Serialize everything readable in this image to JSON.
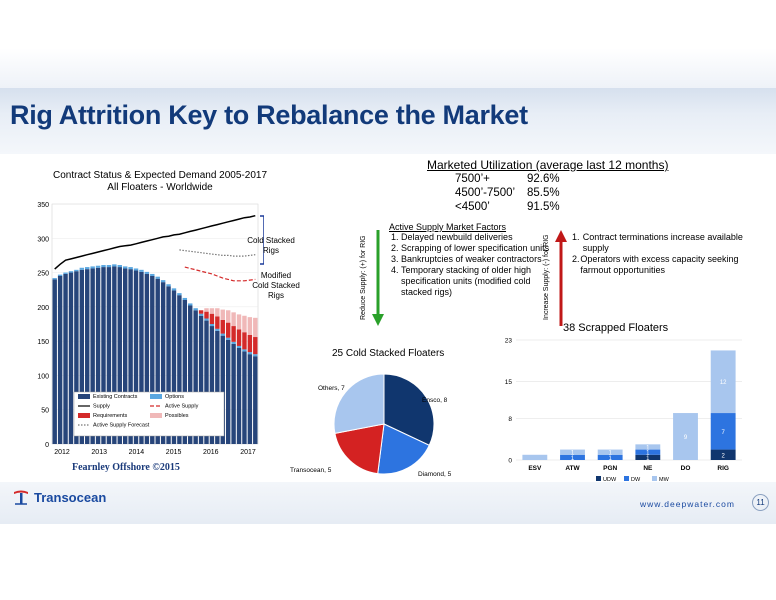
{
  "page": {
    "title": "Rig Attrition Key to Rebalance the Market",
    "website": "www.deepwater.com",
    "page_number": "11",
    "company": "Transocean"
  },
  "left_chart": {
    "title_line1": "Contract Status & Expected Demand 2005-2017",
    "title_line2": "All Floaters - Worldwide",
    "annotation_cold": "Cold Stacked Rigs",
    "annotation_modified_1": "Modified",
    "annotation_modified_2": "Cold Stacked",
    "annotation_modified_3": "Rigs",
    "watermark": "Fearnley Offshore ©2015",
    "legend": [
      "Existing Contracts",
      "Options",
      "Supply",
      "Active Supply",
      "Requirements",
      "Possibles",
      "Active Supply Forecast"
    ]
  },
  "utilization": {
    "title": "Marketed Utilization (average last 12 months)",
    "rows": [
      {
        "cat": "7500’+",
        "val": "92.6%"
      },
      {
        "cat": "4500’-7500’",
        "val": "85.5%"
      },
      {
        "cat": "<4500’",
        "val": "91.5%"
      }
    ]
  },
  "factors": {
    "title": "Active Supply Market Factors",
    "reduce_label": "Reduce Supply: (+) for RIG",
    "increase_label": "Increase Supply: (-) for RIG",
    "reduce_items": [
      "Delayed newbuild deliveries",
      "Scrapping of lower specification units",
      "Bankruptcies of weaker contractors",
      "Temporary stacking of older high specification units (modified cold stacked rigs)"
    ],
    "increase_items": [
      "Contract terminations increase available supply",
      "Operators with excess capacity seeking farmout opportunities"
    ]
  },
  "chart_data": [
    {
      "type": "bar",
      "title": "Contract Status & Expected Demand 2005-2017",
      "subtitle": "All Floaters - Worldwide",
      "ylim": [
        0,
        350
      ],
      "yticks": [
        0,
        50,
        100,
        150,
        200,
        250,
        300,
        350
      ],
      "xticks": [
        "2012",
        "2013",
        "2014",
        "2015",
        "2016",
        "2017"
      ],
      "series": [
        {
          "name": "Existing Contracts",
          "color": "#27457a",
          "values": [
            240,
            245,
            248,
            250,
            252,
            254,
            255,
            256,
            257,
            258,
            258,
            259,
            258,
            256,
            255,
            253,
            251,
            248,
            245,
            241,
            236,
            230,
            224,
            217,
            210,
            202,
            195,
            187,
            180,
            172,
            165,
            158,
            152,
            146,
            140,
            135,
            131,
            128
          ]
        },
        {
          "name": "Options",
          "color": "#5aa7e0",
          "values": [
            2,
            2,
            2,
            2,
            2,
            3,
            3,
            3,
            3,
            3,
            3,
            3,
            3,
            3,
            3,
            3,
            3,
            3,
            3,
            3,
            3,
            3,
            3,
            3,
            3,
            3,
            3,
            3,
            3,
            3,
            3,
            3,
            3,
            3,
            3,
            3,
            3,
            3
          ]
        },
        {
          "name": "Requirements",
          "color": "#d42a2a",
          "values": [
            0,
            0,
            0,
            0,
            0,
            0,
            0,
            0,
            0,
            0,
            0,
            0,
            0,
            0,
            0,
            0,
            0,
            0,
            0,
            0,
            0,
            0,
            0,
            0,
            0,
            0,
            0,
            5,
            10,
            15,
            18,
            20,
            22,
            23,
            24,
            25,
            25,
            25
          ]
        },
        {
          "name": "Possibles",
          "color": "#f0b8b8",
          "values": [
            0,
            0,
            0,
            0,
            0,
            0,
            0,
            0,
            0,
            0,
            0,
            0,
            0,
            0,
            0,
            0,
            0,
            0,
            0,
            0,
            0,
            0,
            0,
            0,
            0,
            0,
            0,
            0,
            5,
            8,
            12,
            15,
            18,
            20,
            22,
            24,
            26,
            28
          ]
        }
      ],
      "lines": [
        {
          "name": "Supply",
          "color": "#000000",
          "values": [
            255,
            262,
            268,
            270,
            272,
            274,
            276,
            278,
            280,
            282,
            284,
            286,
            288,
            289,
            290,
            292,
            294,
            296,
            298,
            300,
            302,
            303,
            305,
            306,
            308,
            310,
            312,
            314,
            316,
            318,
            320,
            322,
            324,
            326,
            328,
            330,
            331,
            333
          ]
        },
        {
          "name": "Active Supply",
          "color": "#d42a2a",
          "values": [
            null,
            null,
            null,
            null,
            null,
            null,
            null,
            null,
            null,
            null,
            null,
            null,
            null,
            null,
            null,
            null,
            null,
            null,
            null,
            null,
            null,
            null,
            null,
            null,
            258,
            256,
            254,
            252,
            250,
            248,
            245,
            242,
            240,
            238,
            238,
            238,
            239,
            240
          ]
        },
        {
          "name": "Active Supply Forecast",
          "color": "#777777",
          "values": [
            null,
            null,
            null,
            null,
            null,
            null,
            null,
            null,
            null,
            null,
            null,
            null,
            null,
            null,
            null,
            null,
            null,
            null,
            null,
            null,
            null,
            null,
            null,
            283,
            282,
            281,
            280,
            279,
            278,
            277,
            276,
            275,
            275,
            274,
            274,
            274,
            275,
            276
          ]
        }
      ]
    },
    {
      "type": "pie",
      "title": "25 Cold Stacked Floaters",
      "slices": [
        {
          "label": "Ensco, 8",
          "value": 8,
          "color": "#10366e"
        },
        {
          "label": "Diamond, 5",
          "value": 5,
          "color": "#2d74e0"
        },
        {
          "label": "Transocean, 5",
          "value": 5,
          "color": "#d42222"
        },
        {
          "label": "Others, 7",
          "value": 7,
          "color": "#a8c6ee"
        }
      ]
    },
    {
      "type": "bar",
      "title": "38 Scrapped Floaters",
      "categories": [
        "ESV",
        "ATW",
        "PGN",
        "NE",
        "DO",
        "RIG"
      ],
      "ylim": [
        0,
        23
      ],
      "yticks": [
        0,
        8,
        15,
        23
      ],
      "series": [
        {
          "name": "UDW",
          "color": "#10366e",
          "values": [
            0,
            0,
            0,
            1,
            0,
            2
          ]
        },
        {
          "name": "DW",
          "color": "#2d74e0",
          "values": [
            0,
            1,
            1,
            1,
            0,
            7
          ]
        },
        {
          "name": "MW",
          "color": "#a8c6ee",
          "values": [
            1,
            1,
            1,
            1,
            9,
            12
          ]
        }
      ],
      "data_labels": {
        "NE": [
          "1",
          "1",
          "1"
        ],
        "ATW": [
          "1"
        ],
        "PGN": [
          "1"
        ],
        "DO": [
          "9"
        ],
        "RIG": [
          "2",
          "7",
          "12"
        ]
      }
    }
  ]
}
